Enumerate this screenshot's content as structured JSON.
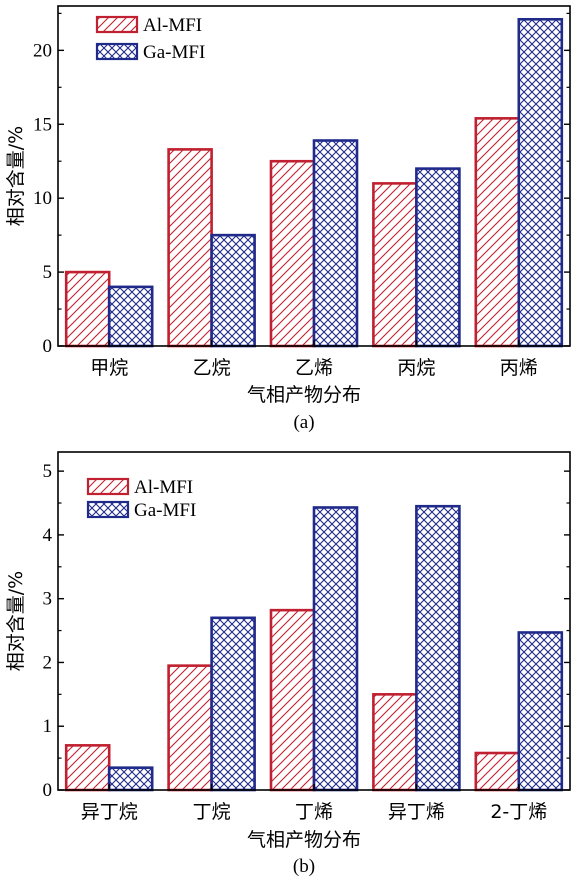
{
  "chart_data": [
    {
      "panel": "a",
      "type": "bar",
      "caption": "(a)",
      "xlabel": "气相产物分布",
      "ylabel": "相对含量/%",
      "categories": [
        "甲烷",
        "乙烷",
        "乙烯",
        "丙烷",
        "丙烯"
      ],
      "ylim": [
        0,
        23
      ],
      "yticks": [
        0,
        5,
        10,
        15,
        20
      ],
      "series": [
        {
          "name": "Al-MFI",
          "values": [
            5.0,
            13.3,
            12.5,
            11.0,
            15.4
          ],
          "color": "#c0202f",
          "pattern": "diagonal-hatch"
        },
        {
          "name": "Ga-MFI",
          "values": [
            4.0,
            7.5,
            13.9,
            12.0,
            22.1
          ],
          "color": "#1f2a8a",
          "pattern": "crosshatch"
        }
      ],
      "legend": "top-left",
      "grid": false
    },
    {
      "panel": "b",
      "type": "bar",
      "caption": "(b)",
      "xlabel": "气相产物分布",
      "ylabel": "相对含量/%",
      "categories": [
        "异丁烷",
        "丁烷",
        "丁烯",
        "异丁烯",
        "2-丁烯"
      ],
      "ylim": [
        0,
        5.3
      ],
      "yticks": [
        0,
        1,
        2,
        3,
        4,
        5
      ],
      "series": [
        {
          "name": "Al-MFI",
          "values": [
            0.7,
            1.95,
            2.82,
            1.5,
            0.58
          ],
          "color": "#c0202f",
          "pattern": "diagonal-hatch"
        },
        {
          "name": "Ga-MFI",
          "values": [
            0.35,
            2.7,
            4.43,
            4.45,
            2.47
          ],
          "color": "#1f2a8a",
          "pattern": "crosshatch"
        }
      ],
      "legend": "top-left",
      "grid": false
    }
  ]
}
